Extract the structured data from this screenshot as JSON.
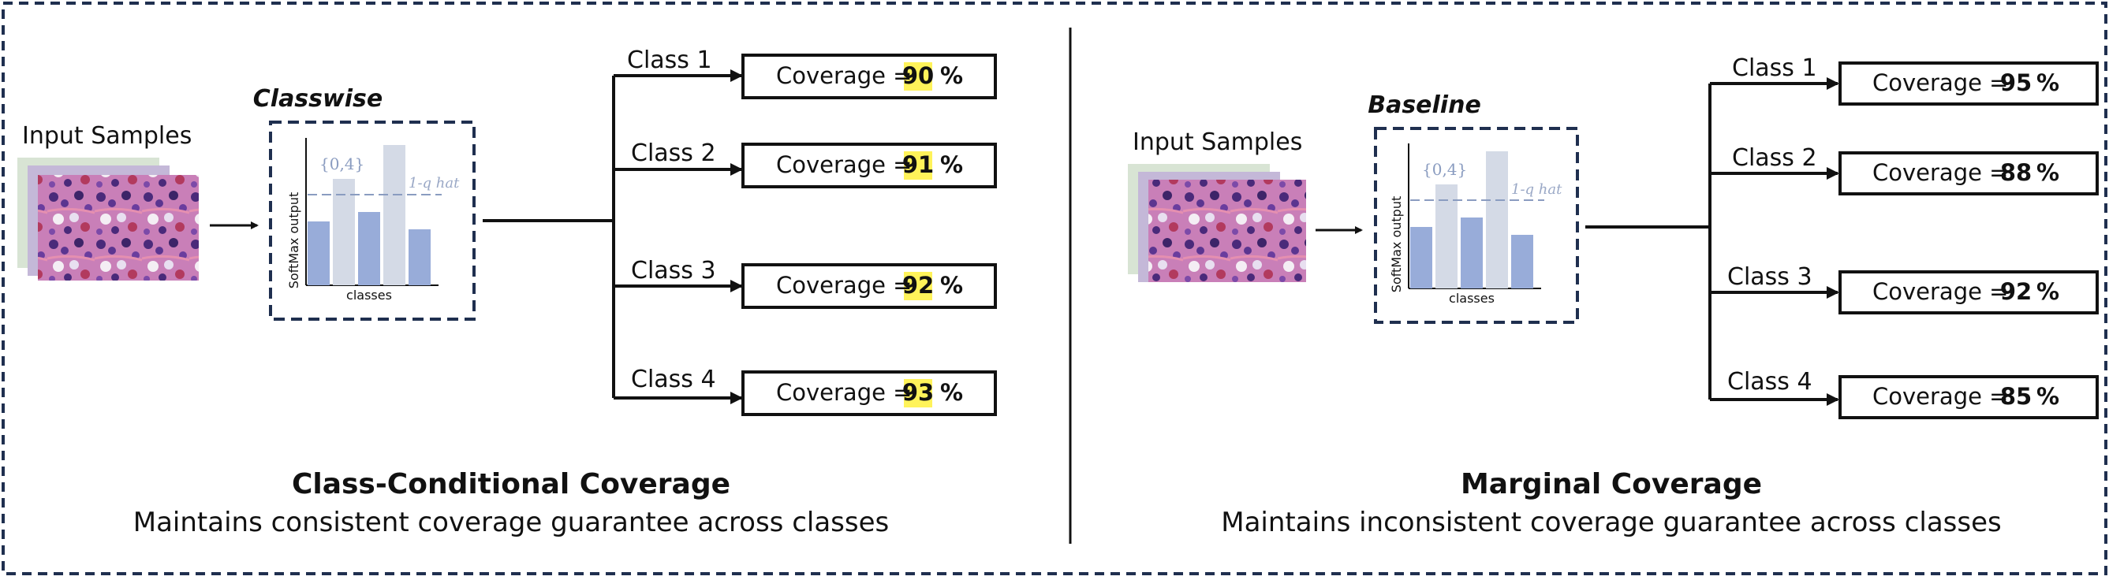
{
  "colors": {
    "frame": "#1f2f4f",
    "bar_dark": "#98acd9",
    "bar_light": "#d4dae6",
    "highlight": "#fff35a"
  },
  "left": {
    "input_label": "Input Samples",
    "model_label": "Classwise",
    "set_label": "{0,4}",
    "threshold_label": "1-q hat",
    "y_axis": "SoftMax output",
    "x_axis": "classes",
    "branches": [
      {
        "label": "Class 1",
        "prefix": "Coverage = ",
        "value": "90",
        "unit": "%"
      },
      {
        "label": "Class 2",
        "prefix": "Coverage = ",
        "value": "91",
        "unit": "%"
      },
      {
        "label": "Class 3",
        "prefix": "Coverage = ",
        "value": "92",
        "unit": "%"
      },
      {
        "label": "Class 4",
        "prefix": "Coverage = ",
        "value": "93",
        "unit": "%"
      }
    ],
    "title": "Class-Conditional Coverage",
    "subtitle": "Maintains consistent coverage guarantee across classes"
  },
  "right": {
    "input_label": "Input Samples",
    "model_label": "Baseline",
    "set_label": "{0,4}",
    "threshold_label": "1-q hat",
    "y_axis": "SoftMax output",
    "x_axis": "classes",
    "branches": [
      {
        "label": "Class 1",
        "prefix": "Coverage = ",
        "value": "95",
        "unit": "%"
      },
      {
        "label": "Class 2",
        "prefix": "Coverage = ",
        "value": "88",
        "unit": "%"
      },
      {
        "label": "Class 3",
        "prefix": "Coverage = ",
        "value": "92",
        "unit": "%"
      },
      {
        "label": "Class 4",
        "prefix": "Coverage = ",
        "value": "85",
        "unit": "%"
      }
    ],
    "title": "Marginal Coverage",
    "subtitle": "Maintains inconsistent coverage guarantee across classes"
  }
}
